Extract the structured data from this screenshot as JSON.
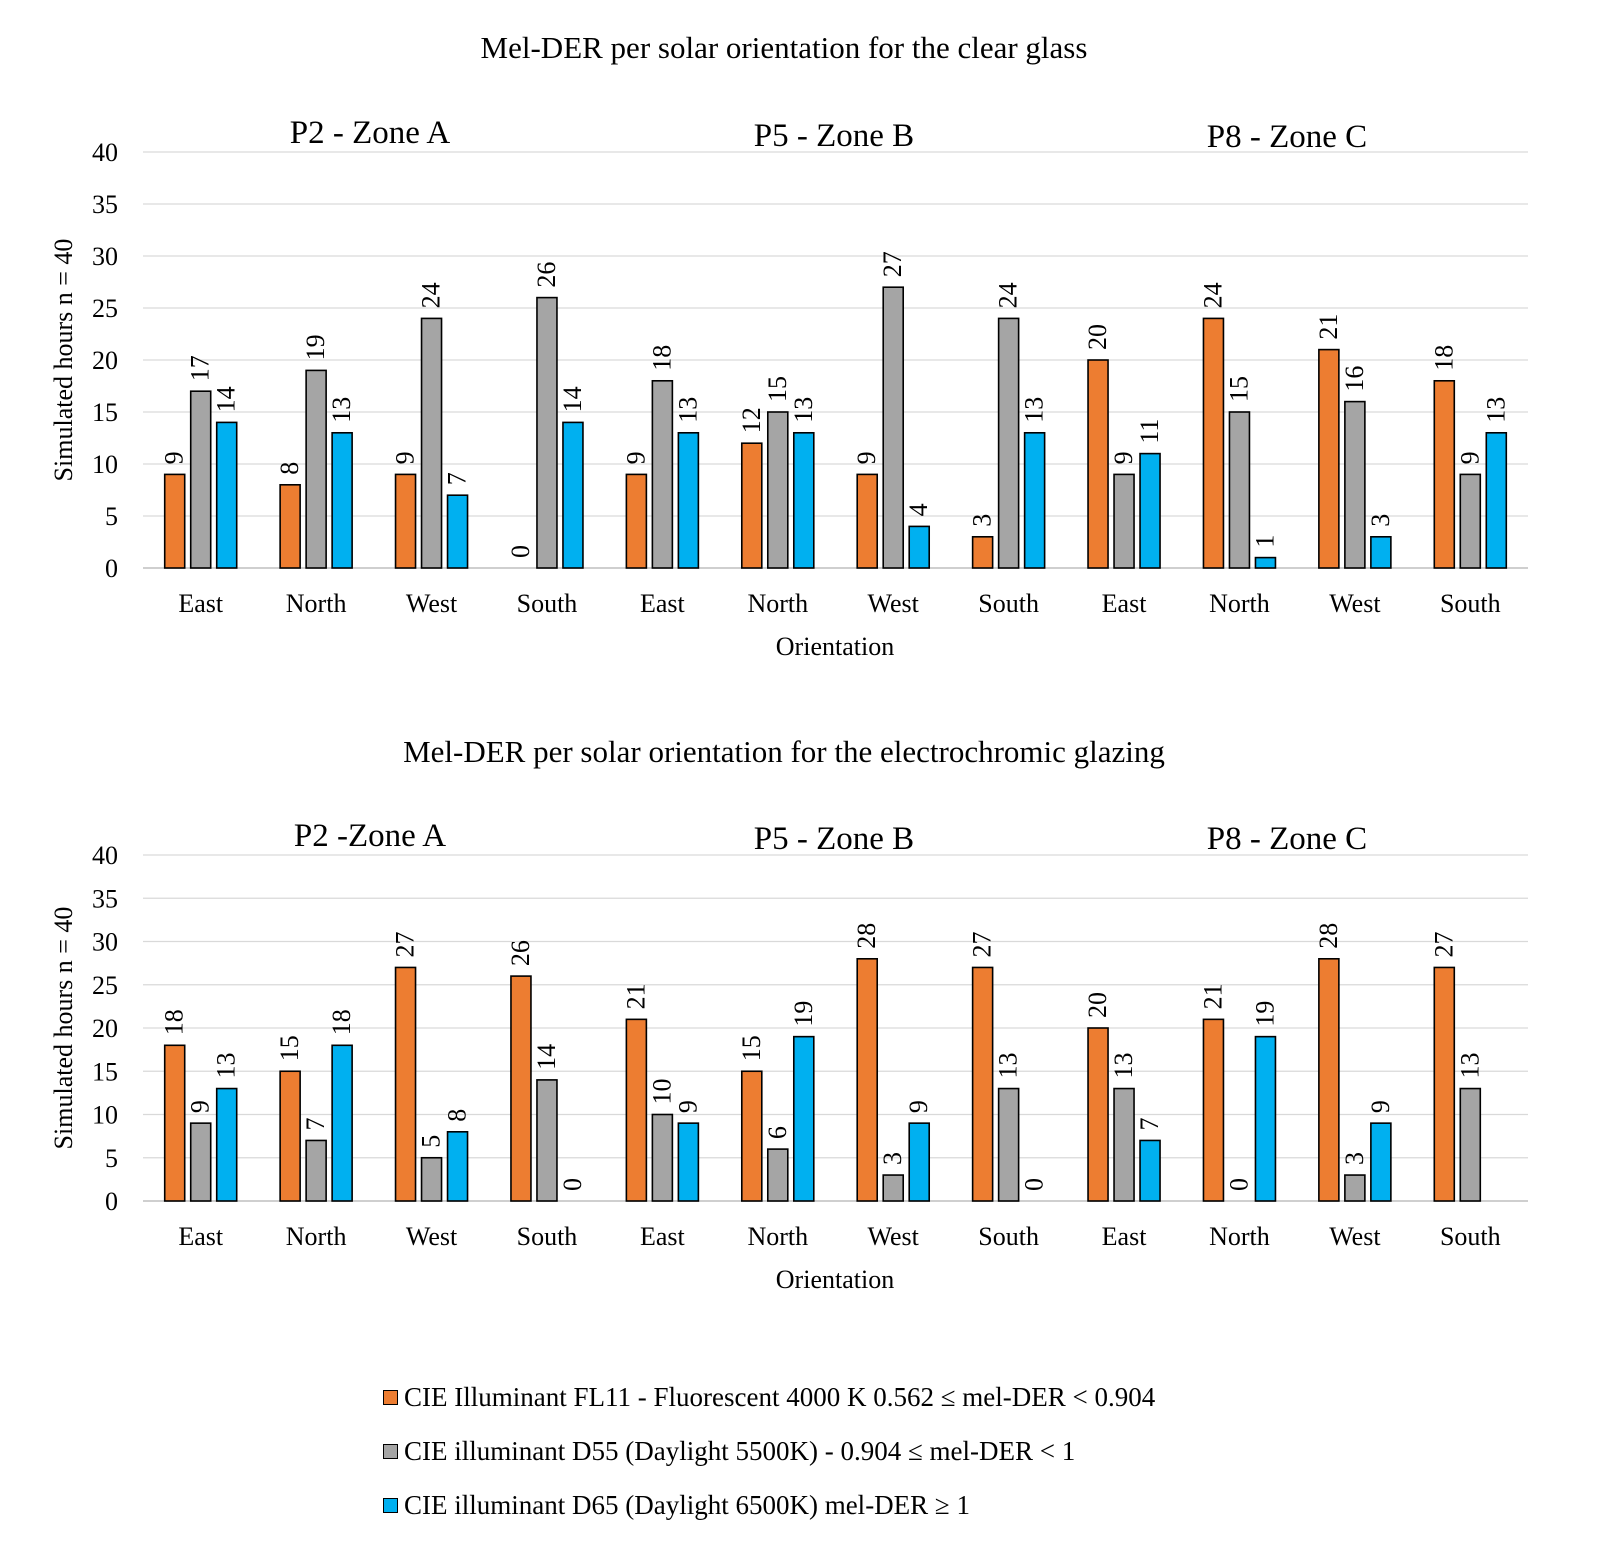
{
  "chart_data": [
    {
      "type": "bar",
      "title": "Mel-DER per solar orientation for the clear glass",
      "groups": [
        "P2 - Zone A",
        "P5 - Zone B",
        "P8 - Zone C"
      ],
      "categories": [
        "East",
        "North",
        "West",
        "South",
        "East",
        "North",
        "West",
        "South",
        "East",
        "North",
        "West",
        "South"
      ],
      "xlabel": "Orientation",
      "ylabel": "Simulated hours n = 40",
      "ylim": [
        0,
        40
      ],
      "yticks": [
        0,
        5,
        10,
        15,
        20,
        25,
        30,
        35,
        40
      ],
      "grid": true,
      "series": [
        {
          "name": "CIE Illuminant FL11 - Fluorescent 4000 K 0.562 ≤ mel-DER  < 0.904",
          "values": [
            9,
            8,
            9,
            0,
            9,
            12,
            9,
            3,
            20,
            24,
            21,
            18
          ]
        },
        {
          "name": "CIE illuminant D55 (Daylight 5500K) - 0.904 ≤ mel-DER  < 1",
          "values": [
            17,
            19,
            24,
            26,
            18,
            15,
            27,
            24,
            9,
            15,
            16,
            9
          ]
        },
        {
          "name": "CIE illuminant D65 (Daylight 6500K) mel-DER  ≥ 1",
          "values": [
            14,
            13,
            7,
            14,
            13,
            13,
            4,
            13,
            11,
            1,
            3,
            13
          ]
        }
      ]
    },
    {
      "type": "bar",
      "title": "Mel-DER per solar orientation for the electrochromic glazing",
      "groups": [
        "P2 -Zone A",
        "P5 - Zone B",
        "P8 - Zone C"
      ],
      "categories": [
        "East",
        "North",
        "West",
        "South",
        "East",
        "North",
        "West",
        "South",
        "East",
        "North",
        "West",
        "South"
      ],
      "xlabel": "Orientation",
      "ylabel": "Simulated hours n = 40",
      "ylim": [
        0,
        40
      ],
      "yticks": [
        0,
        5,
        10,
        15,
        20,
        25,
        30,
        35,
        40
      ],
      "grid": true,
      "series": [
        {
          "name": "CIE Illuminant FL11 - Fluorescent 4000 K 0.562 ≤ mel-DER  < 0.904",
          "values": [
            18,
            15,
            27,
            26,
            21,
            15,
            28,
            27,
            20,
            21,
            28,
            27
          ]
        },
        {
          "name": "CIE illuminant D55 (Daylight 5500K) - 0.904 ≤ mel-DER  < 1",
          "values": [
            9,
            7,
            5,
            14,
            10,
            6,
            3,
            13,
            13,
            0,
            3,
            13
          ]
        },
        {
          "name": "CIE illuminant D65 (Daylight 6500K) mel-DER  ≥ 1",
          "values": [
            13,
            18,
            8,
            0,
            9,
            19,
            9,
            0,
            7,
            19,
            9,
            null
          ]
        }
      ]
    }
  ],
  "colors": [
    "#ED7D31",
    "#A5A5A5",
    "#00B0F0"
  ],
  "legend": {
    "position": "bottom",
    "items": [
      "CIE Illuminant FL11 - Fluorescent 4000 K 0.562 ≤ mel-DER  < 0.904",
      "CIE illuminant D55 (Daylight 5500K) - 0.904 ≤ mel-DER  < 1",
      "CIE illuminant D65 (Daylight 6500K) mel-DER  ≥ 1"
    ]
  }
}
